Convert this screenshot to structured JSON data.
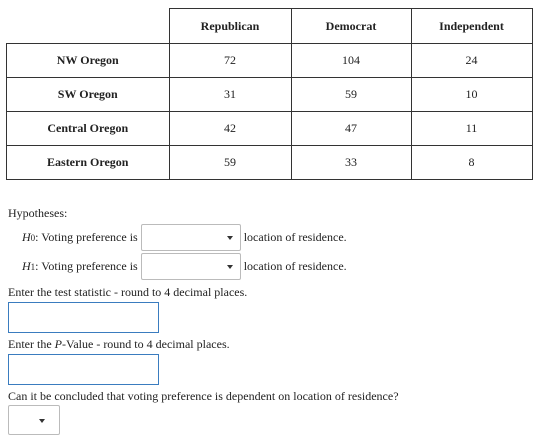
{
  "table": {
    "columns": [
      "Republican",
      "Democrat",
      "Independent"
    ],
    "rows": [
      {
        "label": "NW Oregon",
        "values": [
          "72",
          "104",
          "24"
        ]
      },
      {
        "label": "SW Oregon",
        "values": [
          "31",
          "59",
          "10"
        ]
      },
      {
        "label": "Central Oregon",
        "values": [
          "42",
          "47",
          "11"
        ]
      },
      {
        "label": "Eastern Oregon",
        "values": [
          "59",
          "33",
          "8"
        ]
      }
    ]
  },
  "hypotheses": {
    "label": "Hypotheses:",
    "h0": {
      "symbol": "H",
      "sub": "0",
      "before": ": Voting preference is",
      "after": "location of residence.",
      "selected": ""
    },
    "h1": {
      "symbol": "H",
      "sub": "1",
      "before": ": Voting preference is",
      "after": "location of residence.",
      "selected": ""
    }
  },
  "test_statistic": {
    "prompt": "Enter the test statistic - round to 4 decimal places.",
    "value": ""
  },
  "p_value": {
    "prompt_before": "Enter the ",
    "prompt_italic": "P",
    "prompt_after": "-Value - round to 4 decimal places.",
    "value": ""
  },
  "conclusion": {
    "question": "Can it be concluded that voting preference is dependent on location of residence?",
    "selected": ""
  }
}
